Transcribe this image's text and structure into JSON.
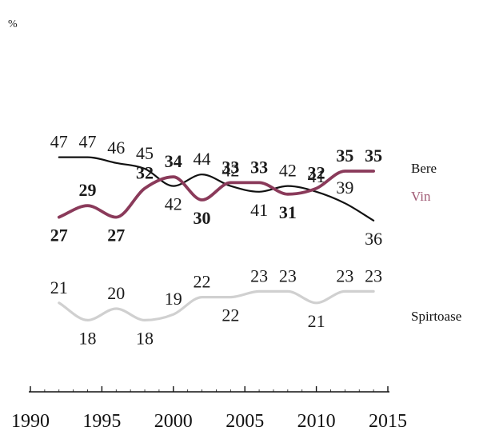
{
  "chart_data": {
    "type": "line",
    "title": "",
    "xlabel": "",
    "ylabel": "",
    "unit_label": "%",
    "x_ticks": [
      1990,
      1995,
      2000,
      2005,
      2010,
      2015
    ],
    "xlim": [
      1990,
      2015
    ],
    "grid": false,
    "legend_position": "right",
    "series": [
      {
        "name": "Bere",
        "color": "#111111",
        "points": [
          {
            "x": 1992,
            "y": 47,
            "label": "47"
          },
          {
            "x": 1994,
            "y": 47,
            "label": "47"
          },
          {
            "x": 1996,
            "y": 46,
            "label": "46"
          },
          {
            "x": 1998,
            "y": 45,
            "label": "45"
          },
          {
            "x": 2000,
            "y": 42,
            "label": "42"
          },
          {
            "x": 2002,
            "y": 44,
            "label": "44"
          },
          {
            "x": 2004,
            "y": 42,
            "label": "42"
          },
          {
            "x": 2006,
            "y": 41,
            "label": "41"
          },
          {
            "x": 2008,
            "y": 42,
            "label": "42"
          },
          {
            "x": 2010,
            "y": 41,
            "label": "41"
          },
          {
            "x": 2012,
            "y": 39,
            "label": "39"
          },
          {
            "x": 2014,
            "y": 36,
            "label": "36"
          }
        ]
      },
      {
        "name": "Vin",
        "color": "#8a3a5a",
        "points": [
          {
            "x": 1992,
            "y": 27,
            "label": "27"
          },
          {
            "x": 1994,
            "y": 29,
            "label": "29"
          },
          {
            "x": 1996,
            "y": 27,
            "label": "27"
          },
          {
            "x": 1998,
            "y": 32,
            "label": "32"
          },
          {
            "x": 2000,
            "y": 34,
            "label": "34"
          },
          {
            "x": 2002,
            "y": 30,
            "label": "30"
          },
          {
            "x": 2004,
            "y": 33,
            "label": "33"
          },
          {
            "x": 2006,
            "y": 33,
            "label": "33"
          },
          {
            "x": 2008,
            "y": 31,
            "label": "31"
          },
          {
            "x": 2010,
            "y": 32,
            "label": "32"
          },
          {
            "x": 2012,
            "y": 35,
            "label": "35"
          },
          {
            "x": 2014,
            "y": 35,
            "label": "35"
          }
        ]
      },
      {
        "name": "Spirtoase",
        "color": "#d0d0d0",
        "points": [
          {
            "x": 1992,
            "y": 21,
            "label": "21"
          },
          {
            "x": 1994,
            "y": 18,
            "label": "18"
          },
          {
            "x": 1996,
            "y": 20,
            "label": "20"
          },
          {
            "x": 1998,
            "y": 18,
            "label": "18"
          },
          {
            "x": 2000,
            "y": 19,
            "label": "19"
          },
          {
            "x": 2002,
            "y": 22,
            "label": "22"
          },
          {
            "x": 2004,
            "y": 22,
            "label": "22"
          },
          {
            "x": 2006,
            "y": 23,
            "label": "23"
          },
          {
            "x": 2008,
            "y": 23,
            "label": "23"
          },
          {
            "x": 2010,
            "y": 21,
            "label": "21"
          },
          {
            "x": 2012,
            "y": 23,
            "label": "23"
          },
          {
            "x": 2014,
            "y": 23,
            "label": "23"
          }
        ]
      }
    ]
  }
}
